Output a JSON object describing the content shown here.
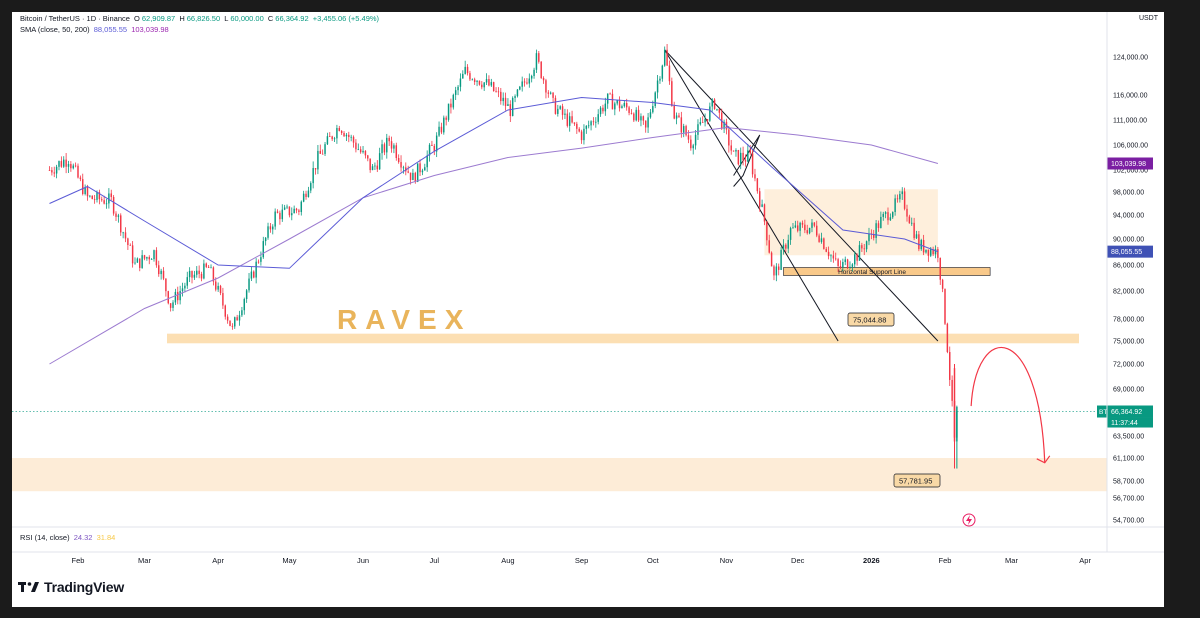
{
  "header": {
    "symbol": "Bitcoin / TetherUS · 1D · Binance",
    "open_label": "O",
    "open": "62,909.87",
    "high_label": "H",
    "high": "66,826.50",
    "low_label": "L",
    "low": "60,000.00",
    "close_label": "C",
    "close": "66,364.92",
    "change": "+3,455.06 (+5.49%)",
    "sma_label": "SMA (close, 50, 200)",
    "sma50_value": "88,055.55",
    "sma200_value": "103,039.98"
  },
  "rsi": {
    "label": "RSI (14, close)",
    "value1": "24.32",
    "value2": "31.84"
  },
  "price_axis_unit": "USDT",
  "watermark": "RAVEX",
  "brand": "TradingView",
  "colors": {
    "up": "#089981",
    "down": "#f23645",
    "sma50": "#5b5bd6",
    "sma200": "#9c7bd0",
    "zone": "#fbd9a6",
    "zone_light": "#fde9d0",
    "arrow": "#f23645"
  },
  "chart_data": {
    "type": "candlestick",
    "symbol": "BTCUSDT",
    "interval": "1D",
    "x_tick_labels": [
      "Feb",
      "Mar",
      "Apr",
      "May",
      "Jun",
      "Jul",
      "Aug",
      "Sep",
      "Oct",
      "Nov",
      "Dec",
      "2026",
      "Feb",
      "Mar",
      "Apr"
    ],
    "y_tick_labels": [
      "124,000.00",
      "116,000.00",
      "111,000.00",
      "106,000.00",
      "102,000.00",
      "98,000.00",
      "94,000.00",
      "90,000.00",
      "86,000.00",
      "82,000.00",
      "78,000.00",
      "75,000.00",
      "72,000.00",
      "69,000.00",
      "63,500.00",
      "61,100.00",
      "58,700.00",
      "56,700.00",
      "54,700.00"
    ],
    "y_tick_values": [
      124000,
      116000,
      111000,
      106000,
      102000,
      98000,
      94000,
      90000,
      86000,
      82000,
      78000,
      75000,
      72000,
      69000,
      63500,
      61100,
      58700,
      56700,
      54700
    ],
    "price_path": [
      [
        "2025-01-20",
        102000
      ],
      [
        "2025-01-28",
        104000
      ],
      [
        "2025-02-05",
        97000
      ],
      [
        "2025-02-15",
        96500
      ],
      [
        "2025-02-25",
        86000
      ],
      [
        "2025-03-05",
        88000
      ],
      [
        "2025-03-12",
        80000
      ],
      [
        "2025-03-20",
        84000
      ],
      [
        "2025-03-28",
        85500
      ],
      [
        "2025-04-07",
        76500
      ],
      [
        "2025-04-15",
        84000
      ],
      [
        "2025-04-25",
        94000
      ],
      [
        "2025-05-05",
        95000
      ],
      [
        "2025-05-12",
        103000
      ],
      [
        "2025-05-22",
        110000
      ],
      [
        "2025-06-05",
        102000
      ],
      [
        "2025-06-12",
        107000
      ],
      [
        "2025-06-22",
        100500
      ],
      [
        "2025-07-01",
        106000
      ],
      [
        "2025-07-14",
        121000
      ],
      [
        "2025-07-24",
        118000
      ],
      [
        "2025-08-02",
        113000
      ],
      [
        "2025-08-13",
        123500
      ],
      [
        "2025-08-20",
        114000
      ],
      [
        "2025-09-01",
        108000
      ],
      [
        "2025-09-12",
        115000
      ],
      [
        "2025-09-22",
        113000
      ],
      [
        "2025-09-28",
        109000
      ],
      [
        "2025-10-06",
        125000
      ],
      [
        "2025-10-10",
        112000
      ],
      [
        "2025-10-17",
        106500
      ],
      [
        "2025-10-27",
        114500
      ],
      [
        "2025-11-04",
        104000
      ],
      [
        "2025-11-11",
        104000
      ],
      [
        "2025-11-17",
        93000
      ],
      [
        "2025-11-21",
        84000
      ],
      [
        "2025-11-28",
        91500
      ],
      [
        "2025-12-08",
        92000
      ],
      [
        "2025-12-18",
        85500
      ],
      [
        "2025-12-26",
        87500
      ],
      [
        "2026-01-05",
        93000
      ],
      [
        "2026-01-14",
        97000
      ],
      [
        "2026-01-21",
        89000
      ],
      [
        "2026-01-29",
        88000
      ],
      [
        "2026-02-01",
        78000
      ],
      [
        "2026-02-05",
        63000
      ],
      [
        "2026-02-06",
        66364.92
      ]
    ],
    "sma50_path": [
      [
        "2025-01-20",
        96000
      ],
      [
        "2025-02-05",
        99000
      ],
      [
        "2025-03-01",
        93000
      ],
      [
        "2025-04-01",
        86000
      ],
      [
        "2025-05-01",
        85500
      ],
      [
        "2025-06-01",
        97000
      ],
      [
        "2025-07-01",
        105000
      ],
      [
        "2025-08-01",
        113000
      ],
      [
        "2025-09-01",
        115500
      ],
      [
        "2025-10-01",
        114500
      ],
      [
        "2025-10-25",
        113000
      ],
      [
        "2025-11-20",
        102500
      ],
      [
        "2025-12-20",
        91500
      ],
      [
        "2026-01-15",
        90000
      ],
      [
        "2026-01-29",
        88055.55
      ]
    ],
    "sma200_path": [
      [
        "2025-01-20",
        72000
      ],
      [
        "2025-03-01",
        79500
      ],
      [
        "2025-04-01",
        84000
      ],
      [
        "2025-05-01",
        90000
      ],
      [
        "2025-06-01",
        97000
      ],
      [
        "2025-07-01",
        101000
      ],
      [
        "2025-08-01",
        104000
      ],
      [
        "2025-09-01",
        105500
      ],
      [
        "2025-10-01",
        107500
      ],
      [
        "2025-11-01",
        109500
      ],
      [
        "2025-12-01",
        108000
      ],
      [
        "2026-01-01",
        106000
      ],
      [
        "2026-01-29",
        103039.98
      ]
    ],
    "support_zone_upper": [
      74700,
      76000
    ],
    "support_zone_lower": [
      57500,
      61100
    ],
    "consolidation_box": [
      87500,
      98500
    ],
    "horizontal_support_line": 85000,
    "horizontal_support_label": "Horizontal Support Line",
    "callout_1": "75,044.88",
    "callout_2": "57,781.95",
    "last_price_label": "BTCUSDT",
    "last_price": "66,364.92",
    "countdown": "11:37:44",
    "sma50_last": "88,055.55",
    "sma200_last": "103,039.98"
  }
}
